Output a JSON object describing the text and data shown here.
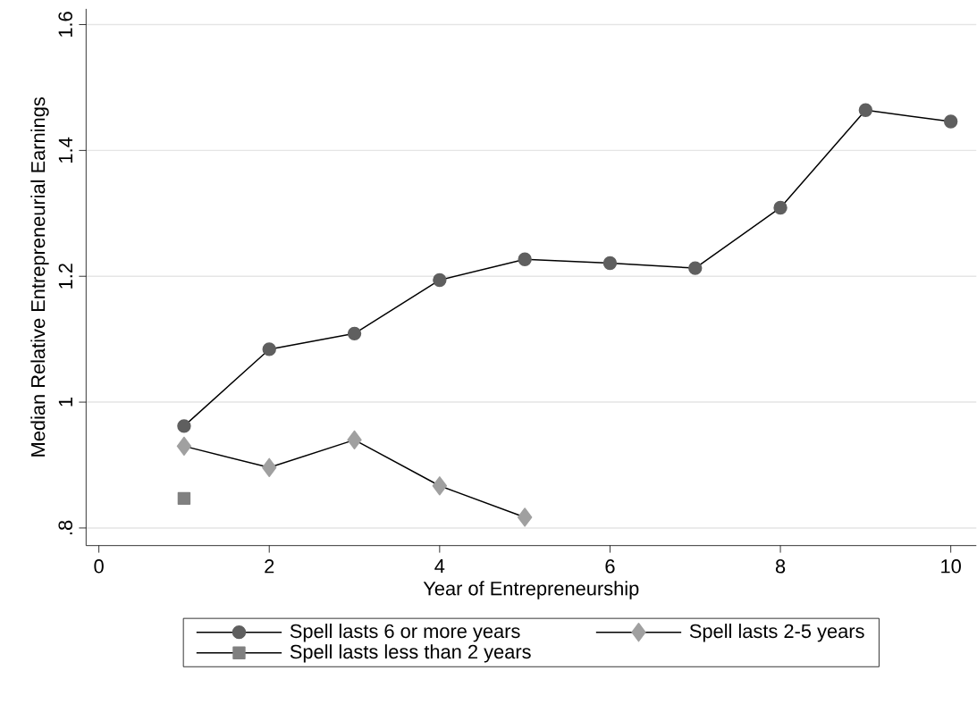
{
  "chart_data": {
    "type": "line",
    "xlabel": "Year of Entrepreneurship",
    "ylabel": "Median Relative Entrepreneurial Earnings",
    "x": [
      1,
      2,
      3,
      4,
      5,
      6,
      7,
      8,
      9,
      10
    ],
    "series": [
      {
        "name": "Spell lasts 6 or more years",
        "color": "#5f5f5f",
        "marker": "circle",
        "values": [
          0.962,
          1.084,
          1.109,
          1.194,
          1.227,
          1.221,
          1.213,
          1.309,
          1.464,
          1.446
        ]
      },
      {
        "name": "Spell lasts 2-5 years",
        "color": "#a0a0a0",
        "marker": "diamond",
        "values": [
          0.93,
          0.896,
          0.94,
          0.867,
          0.817,
          null,
          null,
          null,
          null,
          null
        ]
      },
      {
        "name": "Spell lasts less than 2 years",
        "color": "#808080",
        "marker": "square",
        "values": [
          0.847,
          null,
          null,
          null,
          null,
          null,
          null,
          null,
          null,
          null
        ]
      }
    ],
    "xlim": [
      -0.15,
      10.3
    ],
    "ylim": [
      0.772,
      1.625
    ],
    "xticks": [
      0,
      2,
      4,
      6,
      8,
      10
    ],
    "yticks": [
      {
        "value": 0.8,
        "label": ".8"
      },
      {
        "value": 1,
        "label": "1"
      },
      {
        "value": 1.2,
        "label": "1.2"
      },
      {
        "value": 1.4,
        "label": "1.4"
      },
      {
        "value": 1.6,
        "label": "1.6"
      }
    ],
    "grid": "y",
    "legend": "bottom",
    "line_style": "solid"
  }
}
